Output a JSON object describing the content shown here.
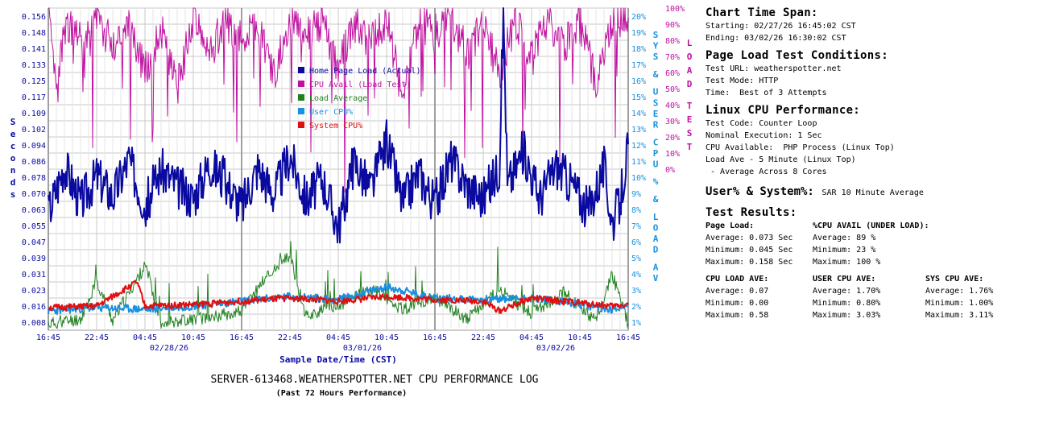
{
  "chart_data": {
    "type": "line",
    "title": "SERVER-613468.WEATHERSPOTTER.NET CPU PERFORMANCE LOG",
    "subtitle": "(Past 72 Hours Performance)",
    "xlabel": "Sample Date/Time (CST)",
    "ylabel": "Seconds",
    "y2label": "SYS & USER CPU % & LOAD AV",
    "y3label": "LOAD TEST",
    "grid": true,
    "legend_position": "top-center",
    "x_tick_labels": [
      "16:45",
      "22:45",
      "04:45",
      "10:45",
      "16:45",
      "22:45",
      "04:45",
      "10:45",
      "16:45",
      "22:45",
      "04:45",
      "10:45",
      "16:45"
    ],
    "x_date_labels": [
      {
        "label": "02/28/26",
        "tick_index": 2.5
      },
      {
        "label": "03/01/26",
        "tick_index": 6.5
      },
      {
        "label": "03/02/26",
        "tick_index": 10.5
      }
    ],
    "y_ticks": [
      "0.008",
      "0.016",
      "0.023",
      "0.031",
      "0.039",
      "0.047",
      "0.055",
      "0.063",
      "0.070",
      "0.078",
      "0.086",
      "0.094",
      "0.102",
      "0.109",
      "0.117",
      "0.125",
      "0.133",
      "0.141",
      "0.148",
      "0.156"
    ],
    "y2_ticks": [
      "1%",
      "2%",
      "3%",
      "4%",
      "5%",
      "6%",
      "7%",
      "8%",
      "9%",
      "10%",
      "11%",
      "12%",
      "13%",
      "14%",
      "15%",
      "16%",
      "17%",
      "18%",
      "19%",
      "20%"
    ],
    "y3_ticks": [
      "0%",
      "10%",
      "20%",
      "30%",
      "40%",
      "50%",
      "60%",
      "70%",
      "80%",
      "90%",
      "100%"
    ],
    "ylim": [
      0,
      0.156
    ],
    "y2lim": [
      0,
      20
    ],
    "y3lim": [
      0,
      100
    ],
    "x_range_hours": [
      0,
      72
    ],
    "series": [
      {
        "name": "Home Page Load (Actual)",
        "color": "#0a0aa0",
        "axis": "y",
        "points": [
          [
            0,
            0.057
          ],
          [
            2,
            0.08
          ],
          [
            4,
            0.062
          ],
          [
            6,
            0.075
          ],
          [
            8,
            0.065
          ],
          [
            10,
            0.083
          ],
          [
            12,
            0.06
          ],
          [
            14,
            0.078
          ],
          [
            16,
            0.07
          ],
          [
            18,
            0.064
          ],
          [
            20,
            0.081
          ],
          [
            22,
            0.072
          ],
          [
            24,
            0.06
          ],
          [
            26,
            0.079
          ],
          [
            28,
            0.066
          ],
          [
            30,
            0.085
          ],
          [
            32,
            0.063
          ],
          [
            34,
            0.074
          ],
          [
            36,
            0.05
          ],
          [
            38,
            0.082
          ],
          [
            40,
            0.068
          ],
          [
            42,
            0.091
          ],
          [
            44,
            0.062
          ],
          [
            46,
            0.077
          ],
          [
            48,
            0.061
          ],
          [
            50,
            0.083
          ],
          [
            52,
            0.07
          ],
          [
            54,
            0.064
          ],
          [
            56,
            0.079
          ],
          [
            56.5,
            0.156
          ],
          [
            57,
            0.07
          ],
          [
            59,
            0.087
          ],
          [
            61,
            0.064
          ],
          [
            63,
            0.08
          ],
          [
            65,
            0.071
          ],
          [
            67,
            0.058
          ],
          [
            69,
            0.079
          ],
          [
            70,
            0.052
          ],
          [
            71,
            0.062
          ],
          [
            72,
            0.09
          ]
        ]
      },
      {
        "name": "CPU Avail (Load Test)",
        "color": "#c010a0",
        "axis": "y3",
        "points": [
          [
            0,
            98
          ],
          [
            1,
            72
          ],
          [
            2,
            95
          ],
          [
            4,
            90
          ],
          [
            6,
            97
          ],
          [
            8,
            88
          ],
          [
            10,
            96
          ],
          [
            12,
            80
          ],
          [
            14,
            94
          ],
          [
            16,
            75
          ],
          [
            18,
            97
          ],
          [
            20,
            86
          ],
          [
            22,
            96
          ],
          [
            24,
            90
          ],
          [
            26,
            95
          ],
          [
            28,
            79
          ],
          [
            30,
            97
          ],
          [
            32,
            92
          ],
          [
            34,
            96
          ],
          [
            36,
            82
          ],
          [
            38,
            95
          ],
          [
            40,
            89
          ],
          [
            42,
            97
          ],
          [
            44,
            71
          ],
          [
            46,
            96
          ],
          [
            48,
            92
          ],
          [
            50,
            97
          ],
          [
            52,
            86
          ],
          [
            54,
            95
          ],
          [
            56,
            80
          ],
          [
            58,
            96
          ],
          [
            60,
            84
          ],
          [
            62,
            97
          ],
          [
            64,
            88
          ],
          [
            66,
            95
          ],
          [
            68,
            77
          ],
          [
            70,
            96
          ],
          [
            72,
            97
          ]
        ]
      },
      {
        "name": "Load Average",
        "color": "#208020",
        "axis": "y2",
        "points": [
          [
            0,
            0.4
          ],
          [
            4,
            0.7
          ],
          [
            6,
            3.0
          ],
          [
            8,
            0.6
          ],
          [
            12,
            4.0
          ],
          [
            14,
            0.5
          ],
          [
            20,
            0.8
          ],
          [
            24,
            1.2
          ],
          [
            27,
            3.3
          ],
          [
            30,
            4.6
          ],
          [
            32,
            0.9
          ],
          [
            36,
            1.5
          ],
          [
            40,
            2.6
          ],
          [
            44,
            1.3
          ],
          [
            48,
            2.0
          ],
          [
            52,
            0.7
          ],
          [
            56,
            2.5
          ],
          [
            60,
            1.0
          ],
          [
            64,
            2.4
          ],
          [
            68,
            0.6
          ],
          [
            70,
            3.5
          ],
          [
            72,
            0.4
          ]
        ]
      },
      {
        "name": "User CPU%",
        "color": "#1a90e0",
        "axis": "y2",
        "points": [
          [
            0,
            1.2
          ],
          [
            6,
            1.4
          ],
          [
            12,
            1.3
          ],
          [
            18,
            1.5
          ],
          [
            24,
            1.8
          ],
          [
            30,
            2.1
          ],
          [
            36,
            1.9
          ],
          [
            42,
            2.7
          ],
          [
            48,
            2.0
          ],
          [
            54,
            1.9
          ],
          [
            60,
            2.0
          ],
          [
            66,
            1.6
          ],
          [
            70,
            1.3
          ],
          [
            72,
            1.6
          ]
        ]
      },
      {
        "name": "System CPU%",
        "color": "#e01010",
        "axis": "y2",
        "points": [
          [
            0,
            1.4
          ],
          [
            6,
            1.5
          ],
          [
            11,
            3.0
          ],
          [
            12,
            1.5
          ],
          [
            18,
            1.6
          ],
          [
            24,
            1.8
          ],
          [
            30,
            2.0
          ],
          [
            36,
            1.8
          ],
          [
            42,
            2.1
          ],
          [
            48,
            1.9
          ],
          [
            54,
            1.8
          ],
          [
            56,
            1.2
          ],
          [
            60,
            2.0
          ],
          [
            66,
            1.7
          ],
          [
            70,
            1.5
          ],
          [
            72,
            1.6
          ]
        ]
      }
    ]
  },
  "info": {
    "span_head": "Chart Time Span:",
    "span_start": "Starting: 02/27/26 16:45:02 CST",
    "span_end": "Ending: 03/02/26 16:30:02 CST",
    "cond_head": "Page Load Test Conditions:",
    "cond_url": "Test URL: weatherspotter.net",
    "cond_mode": "Test Mode: HTTP",
    "cond_time": "Time:  Best of 3 Attempts",
    "linux_head": "Linux CPU Performance:",
    "linux_code": "Test Code: Counter Loop",
    "linux_exec": "Nominal Execution: 1 Sec",
    "linux_avail": "CPU Available:  PHP Process (Linux Top)",
    "linux_load": "Load Ave - 5 Minute (Linux Top)",
    "linux_cores": " - Average Across 8 Cores",
    "usersys_head": "User% & System%:",
    "usersys_val": "SAR 10 Minute Average",
    "results_head": "Test Results:",
    "page_load_head": "Page Load:",
    "page_load_avg": "Average: 0.073 Sec",
    "page_load_min": "Minimum: 0.045 Sec",
    "page_load_max": "Maximum: 0.158 Sec",
    "cpu_avail_head": "%CPU AVAIL (UNDER LOAD):",
    "cpu_avail_avg": "Average: 89 %",
    "cpu_avail_min": "Minimum: 23 %",
    "cpu_avail_max": "Maximum: 100 %",
    "cpu_load_head": "CPU LOAD AVE:",
    "cpu_load_avg": "Average: 0.07",
    "cpu_load_min": "Minimum: 0.00",
    "cpu_load_max": "Maximum: 0.58",
    "user_cpu_head": "USER CPU AVE:",
    "user_cpu_avg": "Average: 1.70%",
    "user_cpu_min": "Minimum: 0.80%",
    "user_cpu_max": "Maximum: 3.03%",
    "sys_cpu_head": "SYS CPU AVE:",
    "sys_cpu_avg": "Average: 1.76%",
    "sys_cpu_min": "Minimum: 1.00%",
    "sys_cpu_max": "Maximum: 3.11%"
  }
}
